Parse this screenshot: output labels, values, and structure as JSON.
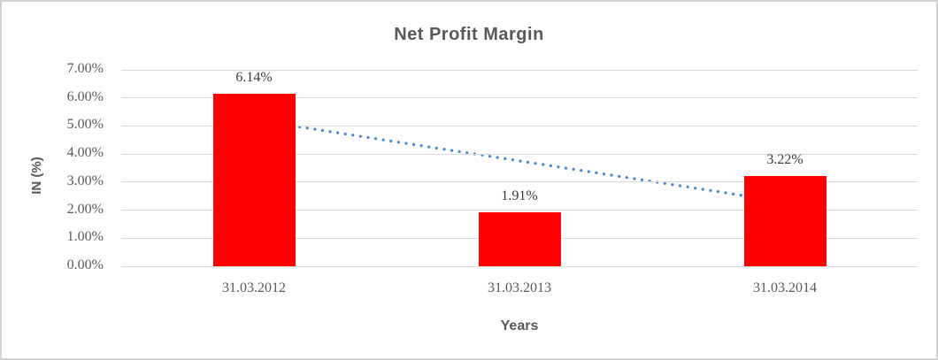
{
  "frame": {
    "background_color": "#ffffff",
    "border_color": "#d3d3d3"
  },
  "chart_data": {
    "type": "bar",
    "title": "Net Profit Margin",
    "xlabel": "Years",
    "ylabel": "IN (%)",
    "categories": [
      "31.03.2012",
      "31.03.2013",
      "31.03.2014"
    ],
    "values": [
      6.14,
      1.91,
      3.22
    ],
    "data_labels": [
      "6.14%",
      "1.91%",
      "3.22%"
    ],
    "ylim": [
      0,
      7
    ],
    "yticks": [
      "0.00%",
      "1.00%",
      "2.00%",
      "3.00%",
      "4.00%",
      "5.00%",
      "6.00%",
      "7.00%"
    ],
    "grid": true,
    "legend": "none",
    "bar_color": "#ff0000",
    "gridline_color": "#d9d9d9",
    "axis_text_color": "#595959",
    "data_label_color": "#3b3b3b",
    "trendline": {
      "type": "linear",
      "style": "dotted",
      "color": "#4a86c8",
      "start_value": 5.22,
      "end_value": 2.29
    }
  }
}
